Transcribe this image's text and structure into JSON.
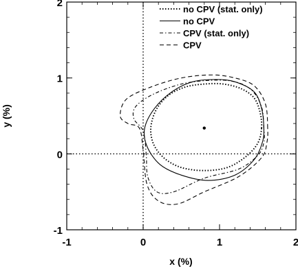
{
  "chart_data": {
    "type": "line",
    "xlabel": "x (%)",
    "ylabel": "y (%)",
    "xlim": [
      -1,
      2
    ],
    "ylim": [
      -1,
      2
    ],
    "x_ticks": [
      -1,
      0,
      1,
      2
    ],
    "y_ticks": [
      -1,
      0,
      1,
      2
    ],
    "tick_labels_x": [
      "-1",
      "0",
      "1",
      "2"
    ],
    "tick_labels_y": [
      "-1",
      "0",
      "1",
      "2"
    ],
    "reference_lines": {
      "x": 0,
      "y": 0,
      "style": "dotted"
    },
    "grid": false,
    "legend_position": "top-right",
    "central_point": {
      "x": 0.8,
      "y": 0.34
    },
    "series": [
      {
        "name": "no CPV (stat. only)",
        "style": "dotted",
        "closed": true,
        "points": [
          [
            1.55,
            0.34
          ],
          [
            1.53,
            0.55
          ],
          [
            1.45,
            0.74
          ],
          [
            1.28,
            0.86
          ],
          [
            1.05,
            0.92
          ],
          [
            0.8,
            0.92
          ],
          [
            0.55,
            0.88
          ],
          [
            0.33,
            0.77
          ],
          [
            0.17,
            0.58
          ],
          [
            0.1,
            0.34
          ],
          [
            0.14,
            0.12
          ],
          [
            0.28,
            -0.06
          ],
          [
            0.5,
            -0.18
          ],
          [
            0.8,
            -0.22
          ],
          [
            1.1,
            -0.18
          ],
          [
            1.34,
            -0.04
          ],
          [
            1.5,
            0.14
          ]
        ]
      },
      {
        "name": "no CPV",
        "style": "solid",
        "closed": true,
        "points": [
          [
            1.58,
            0.34
          ],
          [
            1.55,
            0.6
          ],
          [
            1.45,
            0.82
          ],
          [
            1.2,
            0.95
          ],
          [
            0.95,
            0.98
          ],
          [
            0.65,
            0.95
          ],
          [
            0.38,
            0.82
          ],
          [
            0.15,
            0.6
          ],
          [
            0.02,
            0.34
          ],
          [
            0.05,
            0.1
          ],
          [
            0.22,
            -0.14
          ],
          [
            0.5,
            -0.28
          ],
          [
            0.85,
            -0.35
          ],
          [
            1.2,
            -0.28
          ],
          [
            1.45,
            -0.08
          ],
          [
            1.56,
            0.15
          ]
        ]
      },
      {
        "name": "CPV (stat. only)",
        "style": "dash-dot",
        "closed": true,
        "points": [
          [
            1.58,
            0.34
          ],
          [
            1.55,
            0.62
          ],
          [
            1.42,
            0.84
          ],
          [
            1.2,
            0.95
          ],
          [
            0.9,
            0.97
          ],
          [
            0.5,
            0.92
          ],
          [
            0.12,
            0.78
          ],
          [
            -0.1,
            0.62
          ],
          [
            -0.12,
            0.46
          ],
          [
            0.0,
            0.3
          ],
          [
            0.04,
            0.0
          ],
          [
            0.06,
            -0.3
          ],
          [
            0.18,
            -0.5
          ],
          [
            0.4,
            -0.5
          ],
          [
            0.8,
            -0.32
          ],
          [
            1.25,
            -0.2
          ],
          [
            1.5,
            -0.02
          ],
          [
            1.58,
            0.15
          ]
        ]
      },
      {
        "name": "CPV",
        "style": "dashed",
        "closed": true,
        "points": [
          [
            1.63,
            0.34
          ],
          [
            1.6,
            0.66
          ],
          [
            1.45,
            0.9
          ],
          [
            1.2,
            1.0
          ],
          [
            0.9,
            1.04
          ],
          [
            0.5,
            1.0
          ],
          [
            0.1,
            0.88
          ],
          [
            -0.22,
            0.72
          ],
          [
            -0.3,
            0.5
          ],
          [
            -0.2,
            0.4
          ],
          [
            -0.05,
            0.34
          ],
          [
            0.0,
            0.05
          ],
          [
            0.05,
            -0.4
          ],
          [
            0.2,
            -0.62
          ],
          [
            0.45,
            -0.66
          ],
          [
            0.8,
            -0.5
          ],
          [
            1.25,
            -0.3
          ],
          [
            1.55,
            -0.05
          ],
          [
            1.62,
            0.15
          ]
        ]
      }
    ]
  }
}
